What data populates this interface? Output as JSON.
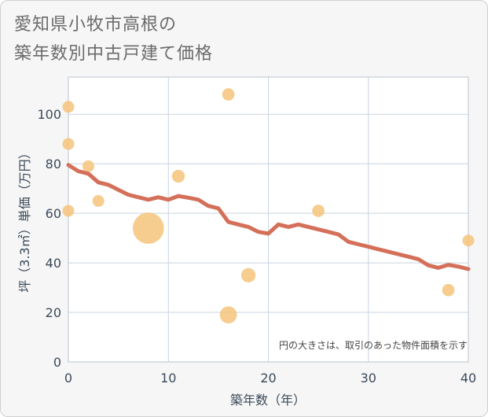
{
  "title_lines": [
    "愛知県小牧市高根の",
    "築年数別中古戸建て価格"
  ],
  "chart_data": {
    "type": "scatter",
    "xlabel": "築年数（年）",
    "ylabel": "坪（3.3㎡）単価（万円）",
    "note": "円の大きさは、取引のあった物件面積を示す",
    "xlim": [
      0,
      40
    ],
    "ylim": [
      0,
      115
    ],
    "xticks": [
      0,
      10,
      20,
      30,
      40
    ],
    "yticks": [
      0,
      20,
      40,
      60,
      80,
      100
    ],
    "grid": true,
    "colors": {
      "scatter": "#f5c47a",
      "line": "#d4705a",
      "grid": "#c9d4df",
      "axis_text": "#3b4a5a"
    },
    "scatter": [
      {
        "x": 0,
        "y": 103,
        "size": 1
      },
      {
        "x": 0,
        "y": 88,
        "size": 1
      },
      {
        "x": 0,
        "y": 61,
        "size": 1
      },
      {
        "x": 2,
        "y": 79,
        "size": 1
      },
      {
        "x": 3,
        "y": 65,
        "size": 1
      },
      {
        "x": 8,
        "y": 54,
        "size": 7
      },
      {
        "x": 11,
        "y": 75,
        "size": 1.2
      },
      {
        "x": 16,
        "y": 108,
        "size": 1.1
      },
      {
        "x": 16,
        "y": 19,
        "size": 2.1
      },
      {
        "x": 18,
        "y": 35,
        "size": 1.5
      },
      {
        "x": 25,
        "y": 61,
        "size": 1.1
      },
      {
        "x": 38,
        "y": 29,
        "size": 1.1
      },
      {
        "x": 40,
        "y": 49,
        "size": 1
      }
    ],
    "line": {
      "x": [
        0,
        1,
        2,
        3,
        4,
        5,
        6,
        7,
        8,
        9,
        10,
        11,
        12,
        13,
        14,
        15,
        16,
        17,
        18,
        19,
        20,
        21,
        22,
        23,
        24,
        25,
        26,
        27,
        28,
        29,
        30,
        31,
        32,
        33,
        34,
        35,
        36,
        37,
        38,
        39,
        40
      ],
      "y": [
        79.5,
        77,
        76,
        72.5,
        71.5,
        69.5,
        67.5,
        66.5,
        65.5,
        66.5,
        65.5,
        67,
        66.3,
        65.5,
        63,
        62,
        56.5,
        55.5,
        54.5,
        52.5,
        51.8,
        55.5,
        54.5,
        55.5,
        54.5,
        53.5,
        52.5,
        51.5,
        48.5,
        47.5,
        46.5,
        45.5,
        44.5,
        43.5,
        42.5,
        41.5,
        39,
        38,
        39.2,
        38.5,
        37.5
      ]
    }
  }
}
